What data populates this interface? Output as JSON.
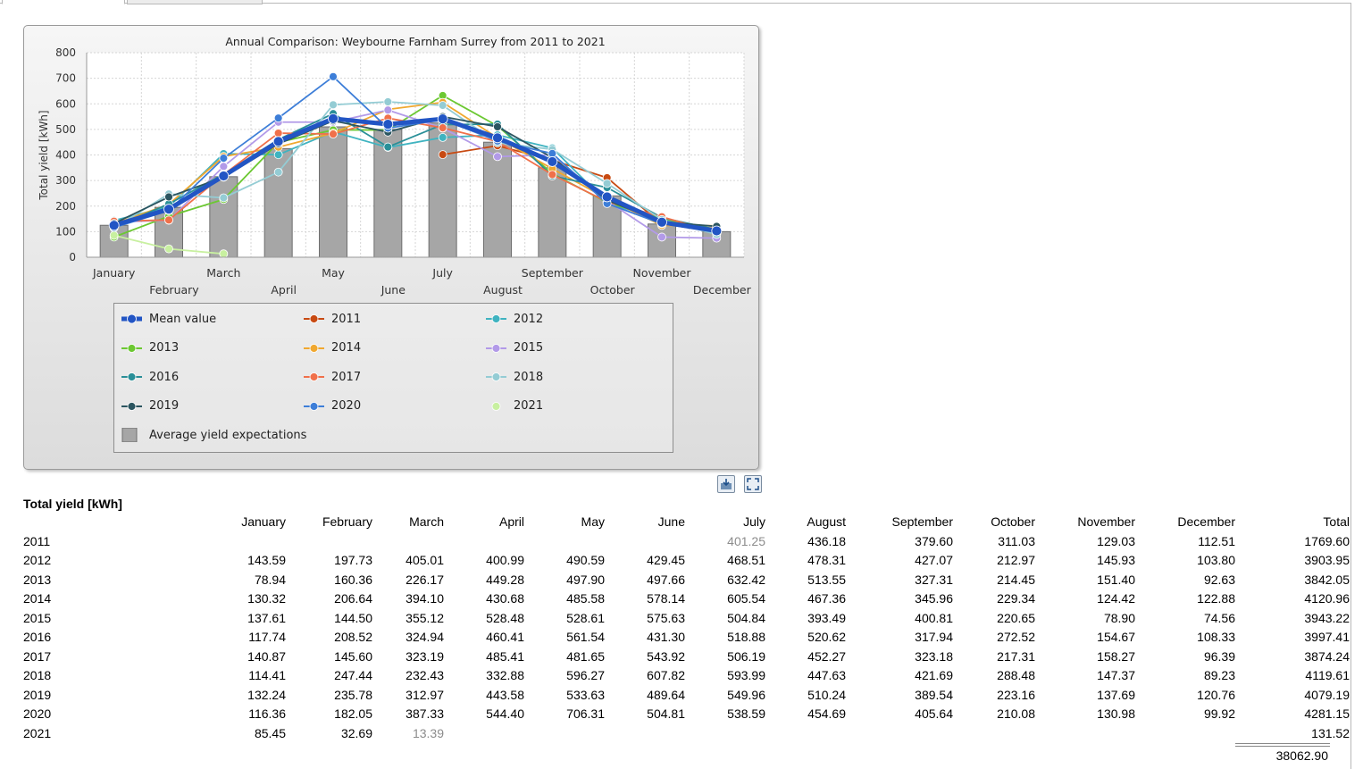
{
  "chart_data": {
    "type": "line",
    "title": "Annual Comparison: Weybourne Farnham Surrey from 2011 to 2021",
    "ylabel": "Total yield [kWh]",
    "xlabel": "",
    "ylim": [
      0,
      800
    ],
    "yticks": [
      0,
      100,
      200,
      300,
      400,
      500,
      600,
      700,
      800
    ],
    "grid": true,
    "legend_placement": "bottom",
    "categories": [
      "January",
      "February",
      "March",
      "April",
      "May",
      "June",
      "July",
      "August",
      "September",
      "October",
      "November",
      "December"
    ],
    "bars": {
      "name": "Average yield expectations",
      "color": "#a6a6a6",
      "values": [
        125,
        195,
        315,
        425,
        510,
        500,
        525,
        450,
        350,
        240,
        130,
        100
      ]
    },
    "series": [
      {
        "name": "2011",
        "color": "#c84a12",
        "values": [
          null,
          null,
          null,
          null,
          null,
          null,
          401.25,
          436.18,
          379.6,
          311.03,
          129.03,
          112.51
        ]
      },
      {
        "name": "2012",
        "color": "#3fb3c0",
        "values": [
          143.59,
          197.73,
          405.01,
          400.99,
          490.59,
          429.45,
          468.51,
          478.31,
          427.07,
          212.97,
          145.93,
          103.8
        ]
      },
      {
        "name": "2013",
        "color": "#6cc832",
        "values": [
          78.94,
          160.36,
          226.17,
          449.28,
          497.9,
          497.66,
          632.42,
          513.55,
          327.31,
          214.45,
          151.4,
          92.63
        ]
      },
      {
        "name": "2014",
        "color": "#f0a830",
        "values": [
          130.32,
          206.64,
          394.1,
          430.68,
          485.58,
          578.14,
          605.54,
          467.36,
          345.96,
          229.34,
          124.42,
          122.88
        ]
      },
      {
        "name": "2015",
        "color": "#b29ae8",
        "values": [
          137.61,
          144.5,
          355.12,
          528.48,
          528.61,
          575.63,
          504.84,
          393.49,
          400.81,
          220.65,
          78.9,
          74.56
        ]
      },
      {
        "name": "2016",
        "color": "#2a8f98",
        "values": [
          117.74,
          208.52,
          324.94,
          460.41,
          561.54,
          431.3,
          518.88,
          520.62,
          317.94,
          272.52,
          154.67,
          108.33
        ]
      },
      {
        "name": "2017",
        "color": "#f0704a",
        "values": [
          140.87,
          145.6,
          323.19,
          485.41,
          481.65,
          543.92,
          506.19,
          452.27,
          323.18,
          217.31,
          158.27,
          96.39
        ]
      },
      {
        "name": "2018",
        "color": "#94ccd4",
        "values": [
          114.41,
          247.44,
          232.43,
          332.88,
          596.27,
          607.82,
          593.99,
          447.63,
          421.69,
          288.48,
          147.37,
          89.23
        ]
      },
      {
        "name": "2019",
        "color": "#2b5560",
        "values": [
          132.24,
          235.78,
          312.97,
          443.58,
          533.63,
          489.64,
          549.96,
          510.24,
          389.54,
          223.16,
          137.69,
          120.76
        ]
      },
      {
        "name": "2020",
        "color": "#3d7ed8",
        "values": [
          116.36,
          182.05,
          387.33,
          544.4,
          706.31,
          504.81,
          538.59,
          454.69,
          405.64,
          210.08,
          130.98,
          99.92
        ]
      },
      {
        "name": "2021",
        "color": "#c8f0a0",
        "values": [
          85.45,
          32.69,
          13.39,
          null,
          null,
          null,
          null,
          null,
          null,
          null,
          null,
          null
        ]
      },
      {
        "name": "Mean value",
        "color": "#2255c4",
        "values": [
          125,
          188,
          318,
          453,
          542,
          520,
          541,
          467,
          374,
          236,
          137,
          103
        ]
      }
    ]
  },
  "legend": {
    "items": [
      {
        "label": "Mean value",
        "color": "#2255c4",
        "kind": "mean"
      },
      {
        "label": "2011",
        "color": "#c84a12",
        "kind": "line"
      },
      {
        "label": "2012",
        "color": "#3fb3c0",
        "kind": "line"
      },
      {
        "label": "2013",
        "color": "#6cc832",
        "kind": "line"
      },
      {
        "label": "2014",
        "color": "#f0a830",
        "kind": "line"
      },
      {
        "label": "2015",
        "color": "#b29ae8",
        "kind": "line"
      },
      {
        "label": "2016",
        "color": "#2a8f98",
        "kind": "line"
      },
      {
        "label": "2017",
        "color": "#f0704a",
        "kind": "line"
      },
      {
        "label": "2018",
        "color": "#94ccd4",
        "kind": "line"
      },
      {
        "label": "2019",
        "color": "#2b5560",
        "kind": "line"
      },
      {
        "label": "2020",
        "color": "#3d7ed8",
        "kind": "line"
      },
      {
        "label": "2021",
        "color": "#c8f0a0",
        "kind": "point"
      },
      {
        "label": "Average yield expectations",
        "color": "#a6a6a6",
        "kind": "bar"
      }
    ]
  },
  "toolbar": {
    "icons": [
      "export-icon",
      "fullscreen-icon"
    ]
  },
  "table": {
    "title": "Total yield [kWh]",
    "headers": [
      "",
      "January",
      "February",
      "March",
      "April",
      "May",
      "June",
      "July",
      "August",
      "September",
      "October",
      "November",
      "December",
      "Total"
    ],
    "rows": [
      {
        "year": "2011",
        "cells": [
          "",
          "",
          "",
          "",
          "",
          "",
          "401.25",
          "436.18",
          "379.60",
          "311.03",
          "129.03",
          "112.51",
          "1769.60"
        ],
        "gray": [
          6
        ]
      },
      {
        "year": "2012",
        "cells": [
          "143.59",
          "197.73",
          "405.01",
          "400.99",
          "490.59",
          "429.45",
          "468.51",
          "478.31",
          "427.07",
          "212.97",
          "145.93",
          "103.80",
          "3903.95"
        ],
        "gray": []
      },
      {
        "year": "2013",
        "cells": [
          "78.94",
          "160.36",
          "226.17",
          "449.28",
          "497.90",
          "497.66",
          "632.42",
          "513.55",
          "327.31",
          "214.45",
          "151.40",
          "92.63",
          "3842.05"
        ],
        "gray": []
      },
      {
        "year": "2014",
        "cells": [
          "130.32",
          "206.64",
          "394.10",
          "430.68",
          "485.58",
          "578.14",
          "605.54",
          "467.36",
          "345.96",
          "229.34",
          "124.42",
          "122.88",
          "4120.96"
        ],
        "gray": []
      },
      {
        "year": "2015",
        "cells": [
          "137.61",
          "144.50",
          "355.12",
          "528.48",
          "528.61",
          "575.63",
          "504.84",
          "393.49",
          "400.81",
          "220.65",
          "78.90",
          "74.56",
          "3943.22"
        ],
        "gray": []
      },
      {
        "year": "2016",
        "cells": [
          "117.74",
          "208.52",
          "324.94",
          "460.41",
          "561.54",
          "431.30",
          "518.88",
          "520.62",
          "317.94",
          "272.52",
          "154.67",
          "108.33",
          "3997.41"
        ],
        "gray": []
      },
      {
        "year": "2017",
        "cells": [
          "140.87",
          "145.60",
          "323.19",
          "485.41",
          "481.65",
          "543.92",
          "506.19",
          "452.27",
          "323.18",
          "217.31",
          "158.27",
          "96.39",
          "3874.24"
        ],
        "gray": []
      },
      {
        "year": "2018",
        "cells": [
          "114.41",
          "247.44",
          "232.43",
          "332.88",
          "596.27",
          "607.82",
          "593.99",
          "447.63",
          "421.69",
          "288.48",
          "147.37",
          "89.23",
          "4119.61"
        ],
        "gray": []
      },
      {
        "year": "2019",
        "cells": [
          "132.24",
          "235.78",
          "312.97",
          "443.58",
          "533.63",
          "489.64",
          "549.96",
          "510.24",
          "389.54",
          "223.16",
          "137.69",
          "120.76",
          "4079.19"
        ],
        "gray": []
      },
      {
        "year": "2020",
        "cells": [
          "116.36",
          "182.05",
          "387.33",
          "544.40",
          "706.31",
          "504.81",
          "538.59",
          "454.69",
          "405.64",
          "210.08",
          "130.98",
          "99.92",
          "4281.15"
        ],
        "gray": []
      },
      {
        "year": "2021",
        "cells": [
          "85.45",
          "32.69",
          "13.39",
          "",
          "",
          "",
          "",
          "",
          "",
          "",
          "",
          "",
          "131.52"
        ],
        "gray": [
          2
        ]
      }
    ],
    "grand_total": "38062.90"
  }
}
